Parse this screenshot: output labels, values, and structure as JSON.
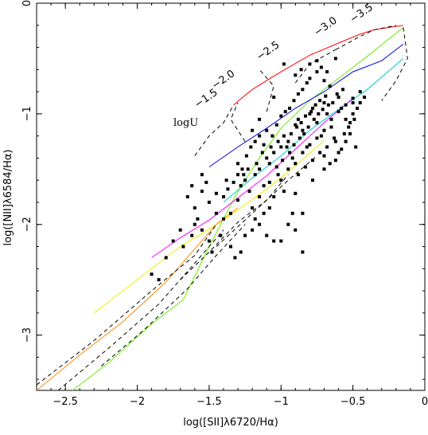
{
  "chart_data": {
    "type": "scatter",
    "title": "",
    "xlabel": "log([SII]λ6720/Hα)",
    "ylabel": "log([NII]λ6584/Hα)",
    "xlim": [
      -2.7,
      0.0
    ],
    "ylim": [
      -3.5,
      0.0
    ],
    "xticks": [
      -2.5,
      -2,
      -1.5,
      -1,
      -0.5,
      0
    ],
    "xtick_labels": [
      "−2.5",
      "−2",
      "−1.5",
      "−1",
      "−0.5",
      "0"
    ],
    "yticks": [
      -3,
      -2,
      -1,
      0
    ],
    "ytick_labels": [
      "−3",
      "−2",
      "−1",
      "0"
    ],
    "grid": false,
    "logU_label": "logU",
    "logU_values": [
      {
        "label": "−1.5",
        "x": -1.58,
        "y": -0.95
      },
      {
        "label": "−2.0",
        "x": -1.46,
        "y": -0.78
      },
      {
        "label": "−2.5",
        "x": -1.15,
        "y": -0.52
      },
      {
        "label": "−3.0",
        "x": -0.75,
        "y": -0.3
      },
      {
        "label": "−3.5",
        "x": -0.5,
        "y": -0.18
      }
    ],
    "model_lines": [
      {
        "color": "#ff0000",
        "points": [
          [
            -1.33,
            -0.92
          ],
          [
            -1.2,
            -0.78
          ],
          [
            -1.0,
            -0.62
          ],
          [
            -0.8,
            -0.47
          ],
          [
            -0.6,
            -0.36
          ],
          [
            -0.45,
            -0.28
          ],
          [
            -0.35,
            -0.24
          ],
          [
            -0.15,
            -0.2
          ]
        ]
      },
      {
        "color": "#66ee00",
        "points": [
          [
            -2.45,
            -3.5
          ],
          [
            -2.2,
            -3.25
          ],
          [
            -1.9,
            -2.9
          ],
          [
            -1.68,
            -2.68
          ],
          [
            -1.5,
            -2.2
          ],
          [
            -1.3,
            -1.7
          ],
          [
            -1.15,
            -1.4
          ],
          [
            -1.0,
            -1.13
          ],
          [
            -0.8,
            -0.88
          ],
          [
            -0.6,
            -0.68
          ],
          [
            -0.4,
            -0.48
          ],
          [
            -0.15,
            -0.22
          ]
        ]
      },
      {
        "color": "#0000ee",
        "points": [
          [
            -1.5,
            -1.48
          ],
          [
            -1.3,
            -1.3
          ],
          [
            -1.1,
            -1.13
          ],
          [
            -0.9,
            -0.95
          ],
          [
            -0.7,
            -0.8
          ],
          [
            -0.5,
            -0.62
          ],
          [
            -0.3,
            -0.52
          ],
          [
            -0.15,
            -0.37
          ]
        ]
      },
      {
        "color": "#00cccc",
        "points": [
          [
            -1.4,
            -1.8
          ],
          [
            -1.2,
            -1.58
          ],
          [
            -1.0,
            -1.38
          ],
          [
            -0.8,
            -1.15
          ],
          [
            -0.6,
            -0.96
          ],
          [
            -0.4,
            -0.78
          ],
          [
            -0.15,
            -0.5
          ]
        ]
      },
      {
        "color": "#ff00ff",
        "points": [
          [
            -1.9,
            -2.3
          ],
          [
            -1.7,
            -2.12
          ],
          [
            -1.5,
            -1.96
          ],
          [
            -1.3,
            -1.76
          ],
          [
            -1.1,
            -1.56
          ],
          [
            -0.9,
            -1.32
          ],
          [
            -0.7,
            -1.08
          ],
          [
            -0.5,
            -0.86
          ]
        ]
      },
      {
        "color": "#eeee00",
        "points": [
          [
            -2.3,
            -2.8
          ],
          [
            -2.0,
            -2.5
          ],
          [
            -1.7,
            -2.2
          ],
          [
            -1.4,
            -1.96
          ],
          [
            -1.1,
            -1.68
          ],
          [
            -0.9,
            -1.47
          ],
          [
            -0.7,
            -1.24
          ]
        ]
      },
      {
        "color": "#ff8800",
        "points": [
          [
            -2.7,
            -3.5
          ],
          [
            -2.4,
            -3.18
          ],
          [
            -2.1,
            -2.88
          ],
          [
            -1.8,
            -2.52
          ],
          [
            -1.6,
            -2.22
          ],
          [
            -1.45,
            -2.0
          ],
          [
            -1.3,
            -1.85
          ]
        ]
      }
    ],
    "dashed_lines": [
      [
        [
          -1.6,
          -1.38
        ],
        [
          -1.5,
          -1.2
        ],
        [
          -1.4,
          -1.08
        ],
        [
          -1.33,
          -0.92
        ]
      ],
      [
        [
          -1.25,
          -1.25
        ],
        [
          -1.35,
          -1.05
        ],
        [
          -1.3,
          -0.9
        ]
      ],
      [
        [
          -1.1,
          -0.98
        ],
        [
          -1.05,
          -0.75
        ],
        [
          -1.15,
          -0.6
        ]
      ],
      [
        [
          -0.9,
          -0.72
        ],
        [
          -0.8,
          -0.55
        ],
        [
          -0.62,
          -0.42
        ]
      ],
      [
        [
          -0.62,
          -0.42
        ],
        [
          -0.45,
          -0.3
        ],
        [
          -0.35,
          -0.24
        ],
        [
          -0.2,
          -0.2
        ]
      ],
      [
        [
          -0.15,
          -0.22
        ],
        [
          -0.12,
          -0.5
        ],
        [
          -0.2,
          -0.7
        ],
        [
          -0.3,
          -0.88
        ]
      ],
      [
        [
          -2.7,
          -3.45
        ],
        [
          -2.3,
          -3.05
        ],
        [
          -1.9,
          -2.6
        ],
        [
          -1.6,
          -2.28
        ],
        [
          -1.45,
          -2.0
        ]
      ],
      [
        [
          -2.55,
          -3.5
        ],
        [
          -2.2,
          -3.12
        ],
        [
          -1.85,
          -2.72
        ],
        [
          -1.6,
          -2.35
        ],
        [
          -1.4,
          -2.05
        ]
      ],
      [
        [
          -2.25,
          -3.28
        ],
        [
          -1.95,
          -2.95
        ],
        [
          -1.65,
          -2.58
        ],
        [
          -1.45,
          -2.28
        ],
        [
          -1.25,
          -2.0
        ]
      ],
      [
        [
          -1.7,
          -2.5
        ],
        [
          -1.5,
          -2.25
        ],
        [
          -1.3,
          -1.98
        ],
        [
          -1.1,
          -1.78
        ],
        [
          -0.95,
          -1.55
        ]
      ],
      [
        [
          -1.45,
          -2.2
        ],
        [
          -1.2,
          -1.9
        ],
        [
          -0.95,
          -1.6
        ],
        [
          -0.75,
          -1.38
        ]
      ]
    ],
    "points": [
      [
        -1.65,
        -1.75
      ],
      [
        -1.55,
        -1.7
      ],
      [
        -1.6,
        -1.85
      ],
      [
        -1.58,
        -1.95
      ],
      [
        -1.5,
        -1.8
      ],
      [
        -1.45,
        -1.72
      ],
      [
        -1.7,
        -2.05
      ],
      [
        -1.62,
        -2.1
      ],
      [
        -1.68,
        -2.2
      ],
      [
        -1.75,
        -2.15
      ],
      [
        -1.8,
        -2.3
      ],
      [
        -1.55,
        -2.05
      ],
      [
        -1.9,
        -2.45
      ],
      [
        -1.85,
        -2.5
      ],
      [
        -1.5,
        -2.15
      ],
      [
        -1.48,
        -2.25
      ],
      [
        -1.42,
        -2.1
      ],
      [
        -1.4,
        -1.95
      ],
      [
        -1.35,
        -1.9
      ],
      [
        -1.3,
        -1.78
      ],
      [
        -1.28,
        -1.65
      ],
      [
        -1.25,
        -1.6
      ],
      [
        -1.22,
        -1.7
      ],
      [
        -1.2,
        -1.85
      ],
      [
        -1.18,
        -1.55
      ],
      [
        -1.15,
        -1.5
      ],
      [
        -1.12,
        -1.65
      ],
      [
        -1.1,
        -1.4
      ],
      [
        -1.08,
        -1.45
      ],
      [
        -1.05,
        -1.35
      ],
      [
        -1.02,
        -1.55
      ],
      [
        -1.0,
        -1.3
      ],
      [
        -0.98,
        -1.2
      ],
      [
        -0.95,
        -1.25
      ],
      [
        -0.92,
        -1.4
      ],
      [
        -0.9,
        -1.1
      ],
      [
        -0.88,
        -1.05
      ],
      [
        -0.85,
        -1.15
      ],
      [
        -0.82,
        -1.3
      ],
      [
        -0.8,
        -1.0
      ],
      [
        -0.78,
        -0.95
      ],
      [
        -0.75,
        -1.08
      ],
      [
        -0.72,
        -1.2
      ],
      [
        -0.7,
        -0.9
      ],
      [
        -0.68,
        -1.0
      ],
      [
        -0.65,
        -1.12
      ],
      [
        -0.62,
        -1.25
      ],
      [
        -0.6,
        -0.85
      ],
      [
        -0.58,
        -0.95
      ],
      [
        -0.55,
        -1.05
      ],
      [
        -0.52,
        -1.18
      ],
      [
        -0.5,
        -0.9
      ],
      [
        -0.48,
        -1.3
      ],
      [
        -0.45,
        -0.8
      ],
      [
        -1.3,
        -1.45
      ],
      [
        -1.27,
        -1.5
      ],
      [
        -1.24,
        -1.38
      ],
      [
        -1.21,
        -1.3
      ],
      [
        -1.18,
        -1.25
      ],
      [
        -1.15,
        -1.2
      ],
      [
        -1.12,
        -1.28
      ],
      [
        -1.1,
        -1.15
      ],
      [
        -1.06,
        -1.2
      ],
      [
        -1.03,
        -1.1
      ],
      [
        -1.0,
        -1.02
      ],
      [
        -0.97,
        -0.98
      ],
      [
        -0.94,
        -0.95
      ],
      [
        -0.91,
        -0.88
      ],
      [
        -0.88,
        -0.82
      ],
      [
        -0.85,
        -0.78
      ],
      [
        -0.82,
        -0.72
      ],
      [
        -0.8,
        -0.68
      ],
      [
        -0.86,
        -0.6
      ],
      [
        -0.8,
        -0.55
      ],
      [
        -0.9,
        -0.65
      ],
      [
        -0.75,
        -0.62
      ],
      [
        -0.7,
        -0.7
      ],
      [
        -0.66,
        -0.75
      ],
      [
        -1.0,
        -1.6
      ],
      [
        -0.98,
        -1.7
      ],
      [
        -0.95,
        -1.5
      ],
      [
        -0.9,
        -1.45
      ],
      [
        -0.85,
        -1.35
      ],
      [
        -0.8,
        -1.28
      ],
      [
        -0.75,
        -1.22
      ],
      [
        -0.7,
        -1.15
      ],
      [
        -0.65,
        -1.05
      ],
      [
        -0.6,
        -0.98
      ],
      [
        -0.55,
        -0.92
      ],
      [
        -0.5,
        -0.86
      ],
      [
        -0.88,
        -1.55
      ],
      [
        -0.83,
        -1.48
      ],
      [
        -0.78,
        -1.42
      ],
      [
        -0.73,
        -1.35
      ],
      [
        -0.68,
        -1.3
      ],
      [
        -0.63,
        -1.22
      ],
      [
        -1.05,
        -1.75
      ],
      [
        -1.08,
        -1.85
      ],
      [
        -1.12,
        -1.9
      ],
      [
        -1.15,
        -2.0
      ],
      [
        -1.2,
        -2.05
      ],
      [
        -1.25,
        -2.1
      ],
      [
        -1.35,
        -2.2
      ],
      [
        -1.32,
        -2.3
      ],
      [
        -1.28,
        -2.25
      ],
      [
        -1.1,
        -2.1
      ],
      [
        -0.95,
        -2.0
      ],
      [
        -0.85,
        -1.9
      ],
      [
        -1.05,
        -2.15
      ],
      [
        -0.9,
        -1.72
      ],
      [
        -0.78,
        -1.6
      ],
      [
        -0.7,
        -1.5
      ],
      [
        -0.62,
        -1.42
      ],
      [
        -0.58,
        -1.32
      ],
      [
        -0.55,
        -1.25
      ],
      [
        -0.52,
        -1.08
      ],
      [
        -0.5,
        -1.0
      ],
      [
        -0.47,
        -0.95
      ],
      [
        -0.45,
        -0.9
      ],
      [
        -0.42,
        -0.85
      ],
      [
        -0.75,
        -0.52
      ],
      [
        -0.72,
        -0.58
      ],
      [
        -0.68,
        -0.62
      ],
      [
        -0.62,
        -0.5
      ],
      [
        -0.98,
        -0.55
      ],
      [
        -1.05,
        -0.85
      ],
      [
        -1.15,
        -1.05
      ],
      [
        -1.2,
        -1.15
      ],
      [
        -1.38,
        -1.6
      ],
      [
        -1.4,
        -1.75
      ],
      [
        -1.45,
        -1.9
      ],
      [
        -1.6,
        -2.0
      ],
      [
        -0.9,
        -2.05
      ],
      [
        -0.85,
        -2.25
      ],
      [
        -1.0,
        -2.15
      ],
      [
        -1.15,
        -1.75
      ],
      [
        -1.18,
        -1.95
      ],
      [
        -0.92,
        -1.9
      ],
      [
        -0.96,
        -1.3
      ],
      [
        -0.93,
        -1.18
      ],
      [
        -0.89,
        -1.12
      ],
      [
        -0.86,
        -1.08
      ],
      [
        -0.83,
        -1.02
      ],
      [
        -0.79,
        -0.98
      ],
      [
        -0.76,
        -0.92
      ],
      [
        -0.73,
        -0.88
      ],
      [
        -0.69,
        -0.84
      ],
      [
        -0.64,
        -0.9
      ],
      [
        -0.61,
        -0.82
      ],
      [
        -0.57,
        -0.78
      ],
      [
        -0.7,
        -1.38
      ],
      [
        -0.66,
        -1.45
      ],
      [
        -0.6,
        -1.35
      ],
      [
        -0.56,
        -1.18
      ],
      [
        -0.53,
        -1.12
      ],
      [
        -0.49,
        -1.05
      ],
      [
        -1.02,
        -1.25
      ],
      [
        -1.07,
        -1.3
      ],
      [
        -1.13,
        -1.35
      ],
      [
        -1.17,
        -1.45
      ],
      [
        -1.23,
        -1.5
      ],
      [
        -1.26,
        -1.55
      ],
      [
        -1.08,
        -1.62
      ],
      [
        -1.03,
        -1.48
      ],
      [
        -0.99,
        -1.42
      ],
      [
        -0.94,
        -1.35
      ],
      [
        -0.91,
        -1.28
      ],
      [
        -0.87,
        -1.22
      ],
      [
        -0.84,
        -1.18
      ],
      [
        -0.81,
        -1.12
      ],
      [
        -0.77,
        -1.05
      ],
      [
        -0.74,
        -1.0
      ],
      [
        -0.71,
        -0.96
      ],
      [
        -0.67,
        -0.92
      ],
      [
        -1.55,
        -1.55
      ],
      [
        -1.52,
        -1.62
      ],
      [
        -1.62,
        -1.65
      ],
      [
        -1.3,
        -1.55
      ],
      [
        -1.33,
        -1.62
      ],
      [
        -1.37,
        -1.68
      ]
    ]
  }
}
